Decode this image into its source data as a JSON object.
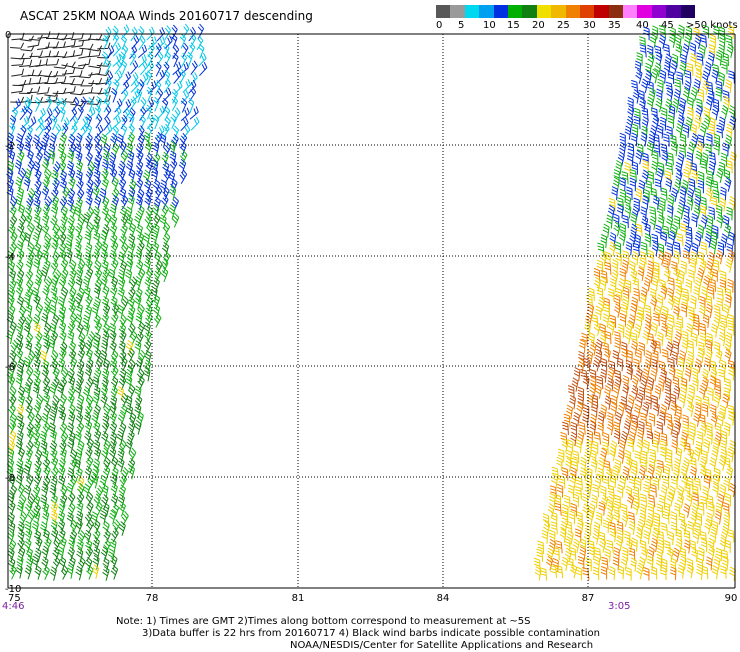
{
  "title": "ASCAT 25KM NOAA Winds 20160717 descending",
  "scale": {
    "labels": [
      "0",
      "5",
      "10",
      "15",
      "20",
      "25",
      "30",
      "35",
      "40",
      "45",
      ">50 knots"
    ],
    "colors": [
      "#585858",
      "#9a9a9a",
      "#00d8f0",
      "#00a0f0",
      "#0030e0",
      "#00b000",
      "#108010",
      "#f0e000",
      "#f0b800",
      "#f08000",
      "#e04000",
      "#c00000",
      "#8a3010",
      "#ff80ff",
      "#e000e0",
      "#9000d0",
      "#5000a0",
      "#200060"
    ]
  },
  "map": {
    "y_labels": [
      "0",
      "-2",
      "-4",
      "-6",
      "-8",
      "-10"
    ],
    "x_labels": [
      "75",
      "78",
      "81",
      "84",
      "87",
      "90"
    ],
    "pass_times": [
      "4:46",
      "3:05"
    ],
    "barb_colors": {
      "black": "#222222",
      "cyan": "#00c8e8",
      "blue": "#0030d8",
      "green": "#10b010",
      "darkgreen": "#108010",
      "yellow": "#f0d000",
      "orange": "#f08000",
      "brown": "#c05010"
    }
  },
  "notes": {
    "line1": "Note: 1) Times are GMT 2)Times along bottom correspond to measurement at ~5S",
    "line2": "3)Data buffer is 22 hrs from 20160717 4) Black wind barbs indicate possible contamination",
    "line3": "NOAA/NESDIS/Center for Satellite Applications and Research"
  }
}
